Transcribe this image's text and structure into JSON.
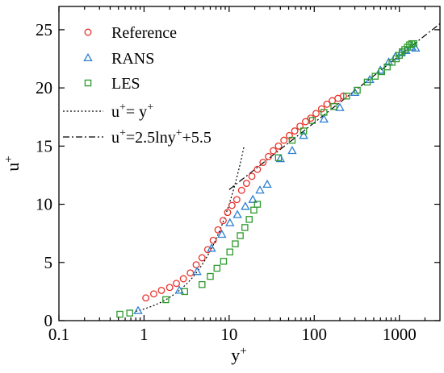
{
  "chart_data": {
    "type": "scatter",
    "xscale": "log",
    "xlim": [
      0.1,
      3000
    ],
    "ylim": [
      0,
      27
    ],
    "xlabel_base": "y",
    "xlabel_sup": "+",
    "ylabel_base": "u",
    "ylabel_sup": "+",
    "xticks": [
      {
        "value": 0.1,
        "label": "0.1"
      },
      {
        "value": 1,
        "label": "1"
      },
      {
        "value": 10,
        "label": "10"
      },
      {
        "value": 100,
        "label": "100"
      },
      {
        "value": 1000,
        "label": "1000"
      }
    ],
    "yticks": [
      {
        "value": 0,
        "label": "0"
      },
      {
        "value": 5,
        "label": "5"
      },
      {
        "value": 10,
        "label": "10"
      },
      {
        "value": 15,
        "label": "15"
      },
      {
        "value": 20,
        "label": "20"
      },
      {
        "value": 25,
        "label": "25"
      }
    ],
    "grid": false,
    "legend_position": "top-left",
    "series": [
      {
        "name": "Reference",
        "marker": "circle",
        "color": "#e8312a",
        "points": [
          [
            1.05,
            1.95
          ],
          [
            1.3,
            2.3
          ],
          [
            1.6,
            2.6
          ],
          [
            2.0,
            2.85
          ],
          [
            2.4,
            3.2
          ],
          [
            2.9,
            3.6
          ],
          [
            3.5,
            4.1
          ],
          [
            4.1,
            4.8
          ],
          [
            4.8,
            5.4
          ],
          [
            5.6,
            6.1
          ],
          [
            6.5,
            6.9
          ],
          [
            7.4,
            7.8
          ],
          [
            8.5,
            8.6
          ],
          [
            9.6,
            9.3
          ],
          [
            10.8,
            9.9
          ],
          [
            12.3,
            10.4
          ],
          [
            14.0,
            11.2
          ],
          [
            16.0,
            11.8
          ],
          [
            18.5,
            12.4
          ],
          [
            21.5,
            13.0
          ],
          [
            25.0,
            13.6
          ],
          [
            29.0,
            14.1
          ],
          [
            33.0,
            14.6
          ],
          [
            38.0,
            15.0
          ],
          [
            44.0,
            15.5
          ],
          [
            51.0,
            15.9
          ],
          [
            59.0,
            16.3
          ],
          [
            68.0,
            16.7
          ],
          [
            79.0,
            17.1
          ],
          [
            91.0,
            17.4
          ],
          [
            105.0,
            17.8
          ],
          [
            122.0,
            18.2
          ],
          [
            141.0,
            18.6
          ],
          [
            163.0,
            18.9
          ],
          [
            190.0,
            19.1
          ],
          [
            220.0,
            19.3
          ]
        ]
      },
      {
        "name": "RANS",
        "marker": "triangle",
        "color": "#2e7fd0",
        "points": [
          [
            0.85,
            0.85
          ],
          [
            2.6,
            2.6
          ],
          [
            4.2,
            4.2
          ],
          [
            6.2,
            6.2
          ],
          [
            8.2,
            7.4
          ],
          [
            10.2,
            8.4
          ],
          [
            12.5,
            9.1
          ],
          [
            15.5,
            9.8
          ],
          [
            19.0,
            10.4
          ],
          [
            23.0,
            11.2
          ],
          [
            28.0,
            11.7
          ],
          [
            40.0,
            13.9
          ],
          [
            55.0,
            14.6
          ],
          [
            75.0,
            15.9
          ],
          [
            130.0,
            17.3
          ],
          [
            200.0,
            18.3
          ],
          [
            300.0,
            19.6
          ],
          [
            450.0,
            20.7
          ],
          [
            600.0,
            21.5
          ],
          [
            750.0,
            22.2
          ],
          [
            900.0,
            22.7
          ],
          [
            1050.0,
            23.0
          ],
          [
            1200.0,
            23.2
          ],
          [
            1400.0,
            23.5
          ],
          [
            1550.0,
            23.4
          ]
        ]
      },
      {
        "name": "LES",
        "marker": "square",
        "color": "#2e9a2e",
        "points": [
          [
            0.52,
            0.55
          ],
          [
            0.68,
            0.65
          ],
          [
            1.8,
            1.8
          ],
          [
            3.0,
            2.5
          ],
          [
            4.8,
            3.1
          ],
          [
            6.0,
            3.8
          ],
          [
            7.2,
            4.5
          ],
          [
            8.6,
            5.1
          ],
          [
            10.2,
            5.9
          ],
          [
            11.8,
            6.6
          ],
          [
            13.5,
            7.3
          ],
          [
            15.3,
            8.0
          ],
          [
            17.2,
            8.7
          ],
          [
            19.5,
            9.5
          ],
          [
            21.5,
            10.0
          ],
          [
            38.0,
            14.0
          ],
          [
            55.0,
            15.5
          ],
          [
            75.0,
            16.3
          ],
          [
            95.0,
            17.2
          ],
          [
            130.0,
            17.9
          ],
          [
            170.0,
            18.4
          ],
          [
            240.0,
            19.3
          ],
          [
            320.0,
            19.8
          ],
          [
            420.0,
            20.5
          ],
          [
            520.0,
            21.0
          ],
          [
            620.0,
            21.4
          ],
          [
            720.0,
            21.8
          ],
          [
            820.0,
            22.2
          ],
          [
            920.0,
            22.5
          ],
          [
            1000.0,
            22.8
          ],
          [
            1080.0,
            23.1
          ],
          [
            1160.0,
            23.3
          ],
          [
            1240.0,
            23.5
          ],
          [
            1320.0,
            23.7
          ],
          [
            1400.0,
            23.8
          ],
          [
            1480.0,
            23.8
          ]
        ]
      }
    ],
    "lines": [
      {
        "name": "u+= y+",
        "label_base": "u",
        "label_mid": "= y",
        "style": "dotted",
        "xrange": [
          0.8,
          15
        ]
      },
      {
        "name": "u+=2.5lny+ +5.5",
        "label_base": "u",
        "label_mid": "=2.5lny",
        "label_tail": "+5.5",
        "style": "dashdot",
        "xrange": [
          10,
          3000
        ]
      }
    ]
  }
}
